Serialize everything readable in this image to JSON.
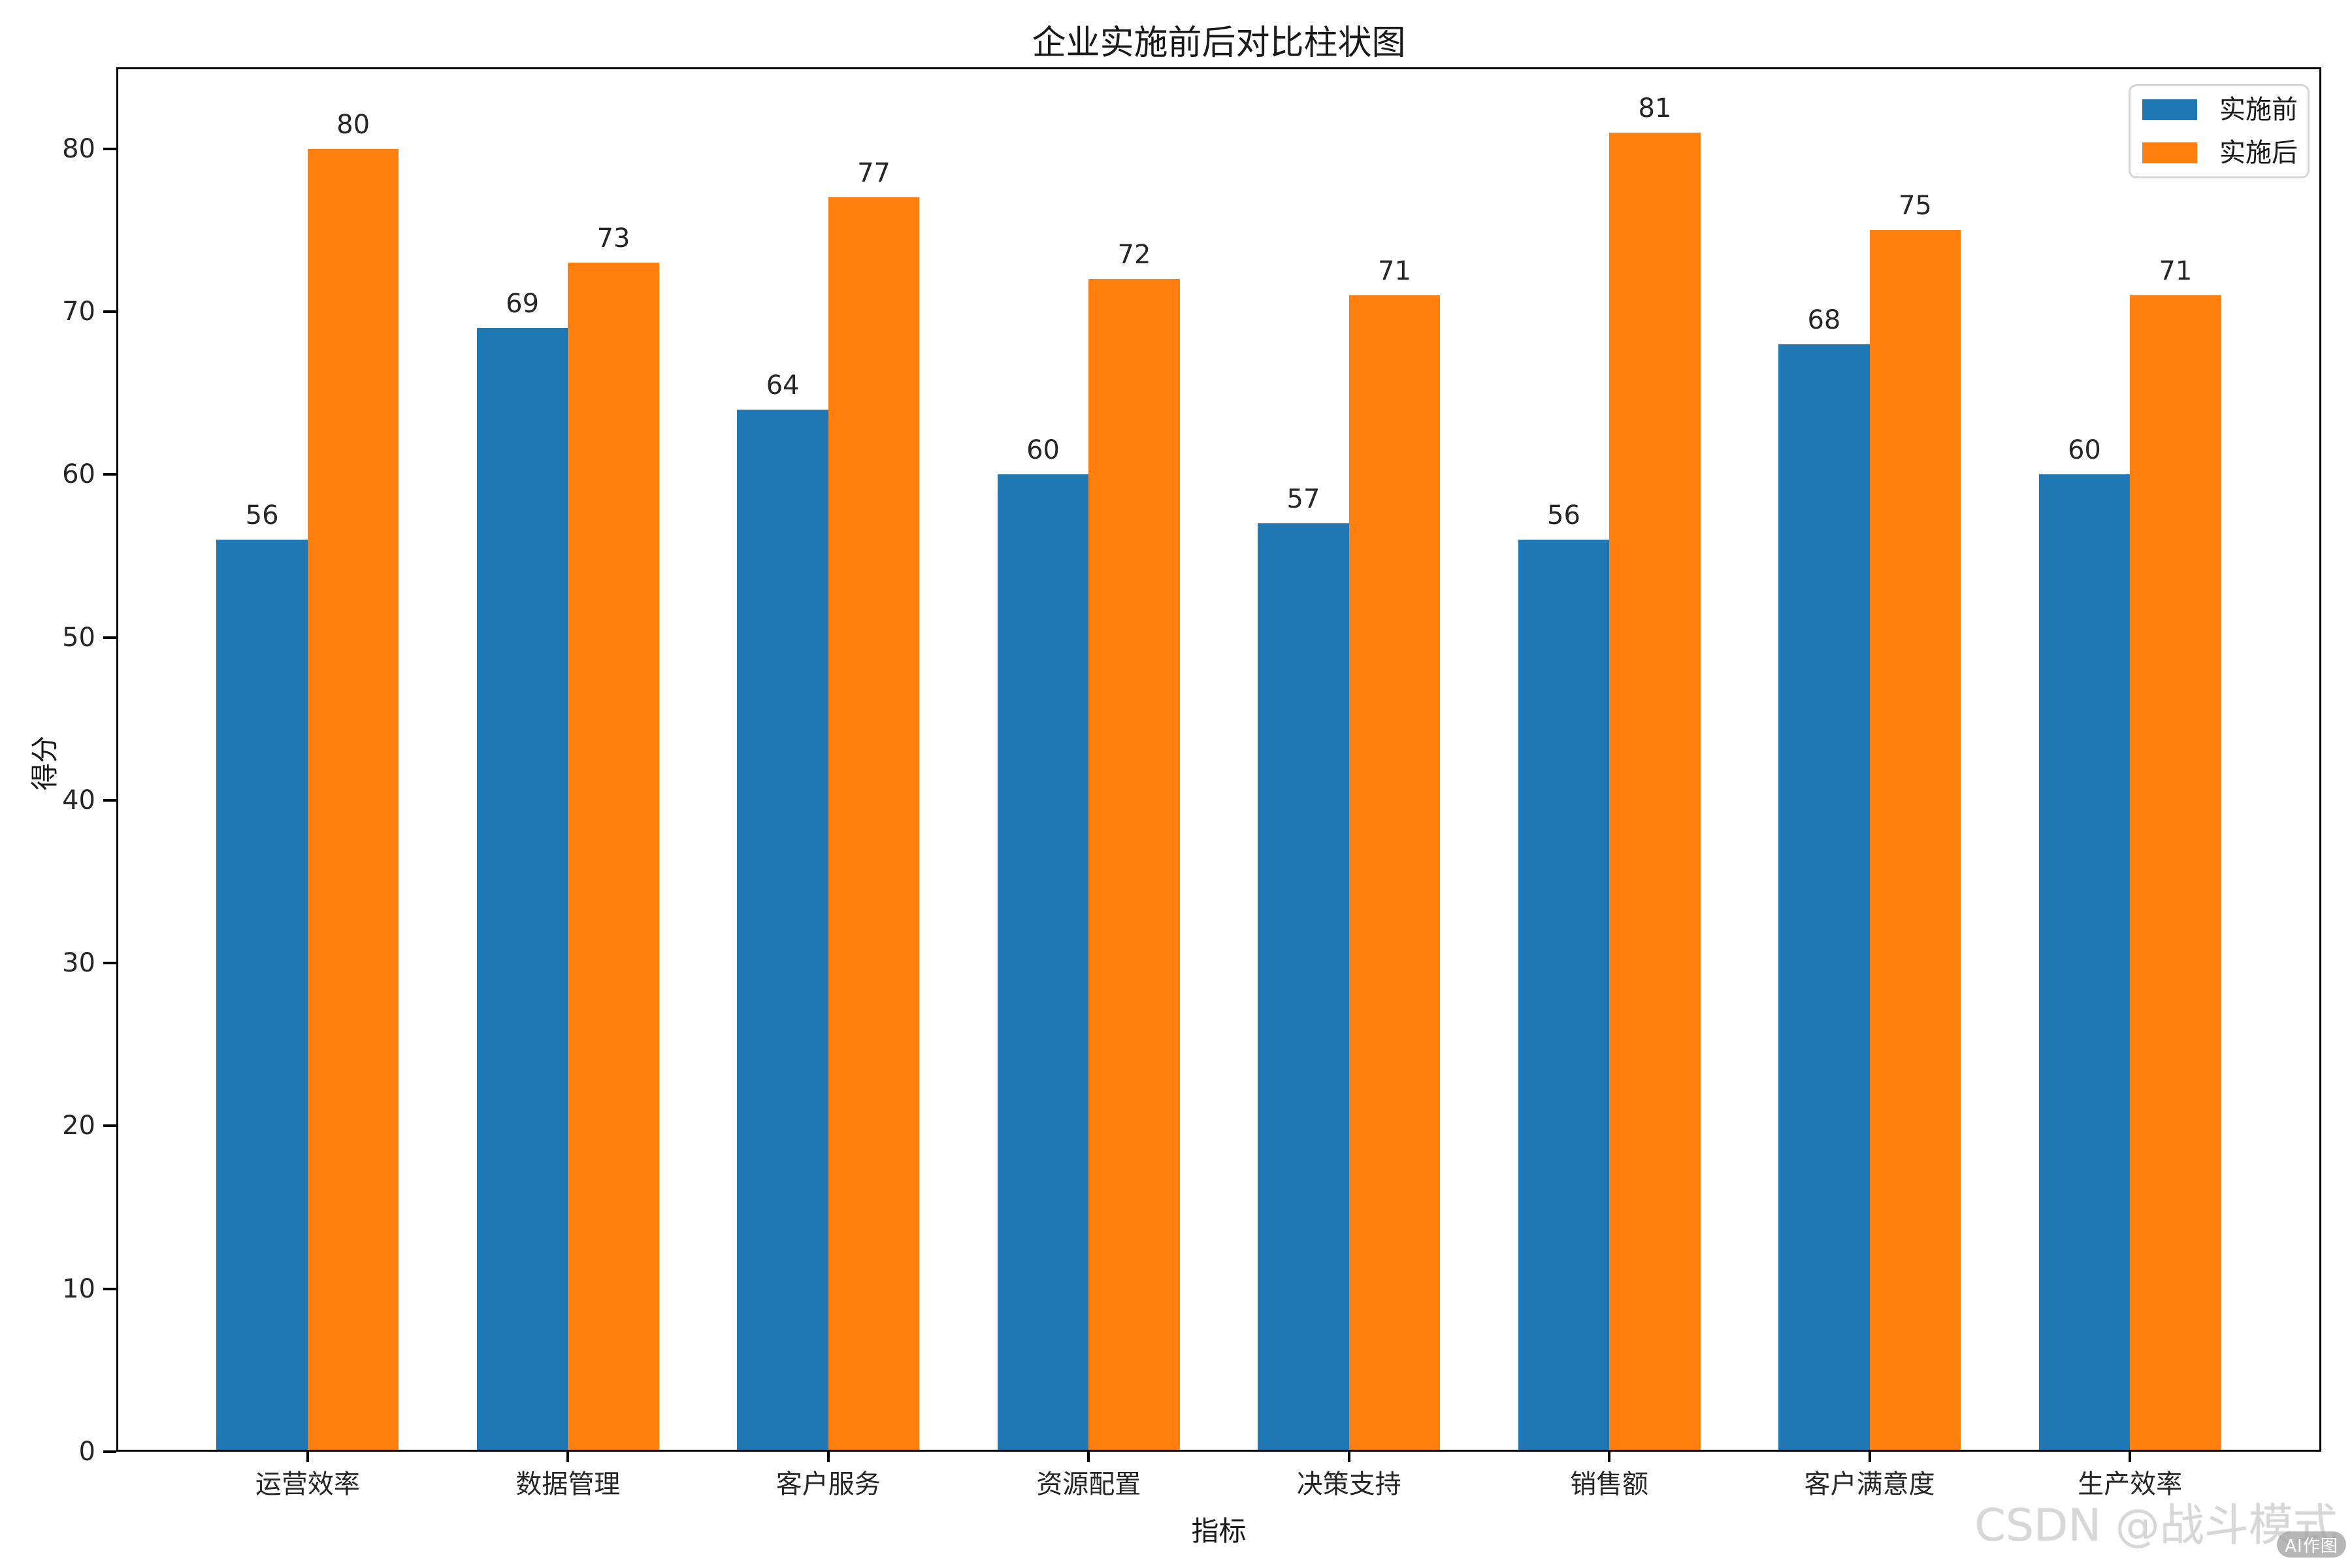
{
  "chart_data": {
    "type": "bar",
    "title": "企业实施前后对比柱状图",
    "xlabel": "指标",
    "ylabel": "得分",
    "categories": [
      "运营效率",
      "数据管理",
      "客户服务",
      "资源配置",
      "决策支持",
      "销售额",
      "客户满意度",
      "生产效率"
    ],
    "series": [
      {
        "name": "实施前",
        "color": "#1f77b4",
        "values": [
          56,
          69,
          64,
          60,
          57,
          56,
          68,
          60
        ]
      },
      {
        "name": "实施后",
        "color": "#ff7f0e",
        "values": [
          80,
          73,
          77,
          72,
          71,
          81,
          75,
          71
        ]
      }
    ],
    "yticks": [
      0,
      10,
      20,
      30,
      40,
      50,
      60,
      70,
      80
    ],
    "ylim": [
      0,
      85
    ],
    "bar_width": 0.35,
    "grid": false,
    "legend_position": "upper right",
    "value_labels": true
  },
  "legend": {
    "items": [
      {
        "label": "实施前",
        "color": "#1f77b4"
      },
      {
        "label": "实施后",
        "color": "#ff7f0e"
      }
    ]
  },
  "watermark": {
    "text": "CSDN @战斗模式",
    "badge": "AI作图"
  }
}
